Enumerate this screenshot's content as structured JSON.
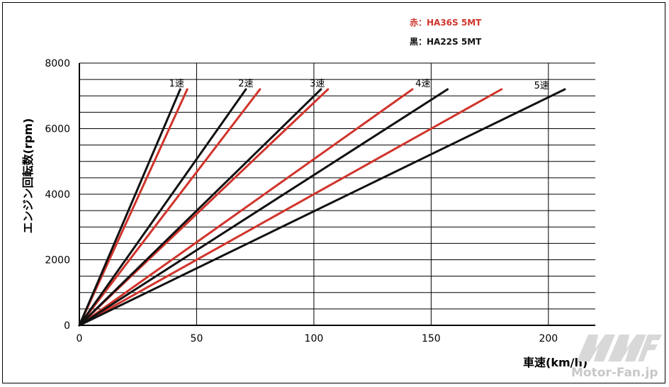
{
  "legend": {
    "red": "赤：HA36S 5MT",
    "black": "黒：HA22S 5MT",
    "red_color": "#d0342c",
    "black_color": "#111111"
  },
  "watermark": "Motor-Fan.jp",
  "chart_data": {
    "type": "line",
    "xlabel": "車速(km/h)",
    "ylabel": "エンジン回転数(rpm)",
    "xlim": [
      0,
      220
    ],
    "ylim": [
      0,
      8000
    ],
    "xticks": [
      "0",
      "50",
      "100",
      "150",
      "200"
    ],
    "yticks": [
      "0",
      "2000",
      "4000",
      "6000",
      "8000"
    ],
    "grid": true,
    "gear_labels": [
      "1速",
      "2速",
      "3速",
      "4速",
      "5速"
    ],
    "series": [
      {
        "name": "赤：HA36S 5MT",
        "color": "#d0342c",
        "lines": [
          {
            "gear": "1速",
            "x": [
              0,
              46
            ],
            "y": [
              0,
              7200
            ]
          },
          {
            "gear": "2速",
            "x": [
              0,
              77
            ],
            "y": [
              0,
              7200
            ]
          },
          {
            "gear": "3速",
            "x": [
              0,
              106
            ],
            "y": [
              0,
              7200
            ]
          },
          {
            "gear": "4速",
            "x": [
              0,
              142
            ],
            "y": [
              0,
              7200
            ]
          },
          {
            "gear": "5速",
            "x": [
              0,
              180
            ],
            "y": [
              0,
              7200
            ]
          }
        ]
      },
      {
        "name": "黒：HA22S 5MT",
        "color": "#111111",
        "lines": [
          {
            "gear": "1速",
            "x": [
              0,
              43
            ],
            "y": [
              0,
              7200
            ]
          },
          {
            "gear": "2速",
            "x": [
              0,
              71
            ],
            "y": [
              0,
              7200
            ]
          },
          {
            "gear": "3速",
            "x": [
              0,
              103
            ],
            "y": [
              0,
              7200
            ]
          },
          {
            "gear": "4速",
            "x": [
              0,
              157
            ],
            "y": [
              0,
              7200
            ]
          },
          {
            "gear": "5速",
            "x": [
              0,
              207
            ],
            "y": [
              0,
              7200
            ]
          }
        ]
      }
    ]
  }
}
